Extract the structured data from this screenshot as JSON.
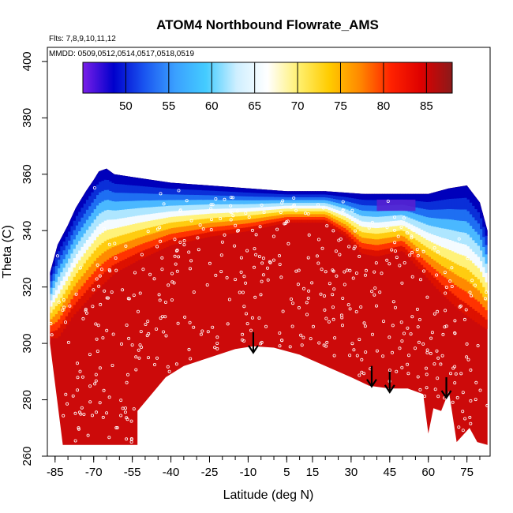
{
  "chart_data": {
    "type": "heatmap",
    "title": "ATOM4 Northbound Flowrate_AMS",
    "annotations": [
      "Flts: 7,8,9,10,11,12",
      "MMDD: 0509,0512,0514,0517,0518,0519"
    ],
    "xlabel": "Latitude (deg N)",
    "ylabel": "Theta (C)",
    "xlim": [
      -88,
      84
    ],
    "ylim": [
      260,
      405
    ],
    "x_ticks": [
      -85,
      -70,
      -55,
      -40,
      -25,
      -10,
      5,
      15,
      30,
      45,
      60,
      75
    ],
    "y_ticks": [
      260,
      280,
      300,
      320,
      340,
      360,
      380,
      400
    ],
    "colorbar": {
      "position": "top",
      "range": [
        45,
        88
      ],
      "ticks": [
        50,
        55,
        60,
        65,
        70,
        75,
        80,
        85
      ],
      "colors": [
        "#7a1fe8",
        "#0000cc",
        "#1a55f0",
        "#3aa0ff",
        "#44ccff",
        "#cfefff",
        "#ffffff",
        "#fff070",
        "#ffcc00",
        "#ff8800",
        "#ff2200",
        "#dd0000",
        "#8b1a1a"
      ]
    },
    "field": {
      "lat_range": [
        -87,
        83
      ],
      "top_boundary": [
        [
          -87,
          325
        ],
        [
          -84,
          335
        ],
        [
          -80,
          342
        ],
        [
          -77,
          348
        ],
        [
          -73,
          354
        ],
        [
          -70,
          358
        ],
        [
          -68,
          361
        ],
        [
          -65,
          362
        ],
        [
          -62,
          360
        ],
        [
          -55,
          359
        ],
        [
          -40,
          357
        ],
        [
          -25,
          356
        ],
        [
          -10,
          355
        ],
        [
          5,
          354
        ],
        [
          20,
          354
        ],
        [
          35,
          353
        ],
        [
          50,
          353
        ],
        [
          60,
          353
        ],
        [
          68,
          355
        ],
        [
          75,
          356
        ],
        [
          80,
          350
        ],
        [
          83,
          340
        ]
      ],
      "bottom_boundary": [
        [
          -87,
          300
        ],
        [
          -82,
          264
        ],
        [
          -53,
          264
        ],
        [
          -53,
          276
        ],
        [
          -42,
          288
        ],
        [
          -35,
          292
        ],
        [
          -25,
          295
        ],
        [
          -15,
          298
        ],
        [
          -8,
          299
        ],
        [
          0,
          298.5
        ],
        [
          10,
          296
        ],
        [
          20,
          292
        ],
        [
          30,
          288
        ],
        [
          37,
          285
        ],
        [
          45,
          284
        ],
        [
          52,
          284
        ],
        [
          58,
          282
        ],
        [
          60,
          268
        ],
        [
          62,
          277
        ],
        [
          65,
          276
        ],
        [
          68,
          283
        ],
        [
          71,
          265
        ],
        [
          76,
          270
        ],
        [
          79,
          265
        ],
        [
          83,
          264
        ]
      ],
      "core_top": [
        [
          -84,
          302
        ],
        [
          -78,
          310
        ],
        [
          -70,
          318
        ],
        [
          -62,
          325
        ],
        [
          -52,
          330
        ],
        [
          -40,
          335
        ],
        [
          -25,
          338
        ],
        [
          -10,
          340
        ],
        [
          5,
          343
        ],
        [
          20,
          343
        ],
        [
          28,
          338
        ],
        [
          34,
          332
        ],
        [
          40,
          331
        ],
        [
          50,
          333
        ],
        [
          58,
          325
        ],
        [
          65,
          318
        ],
        [
          72,
          312
        ],
        [
          78,
          308
        ],
        [
          83,
          305
        ]
      ],
      "max_value_core": 86,
      "min_value_top": 48
    },
    "arrows_lat": [
      -8,
      38,
      45,
      67
    ],
    "arrows_theta": [
      302,
      290,
      288,
      286
    ]
  }
}
